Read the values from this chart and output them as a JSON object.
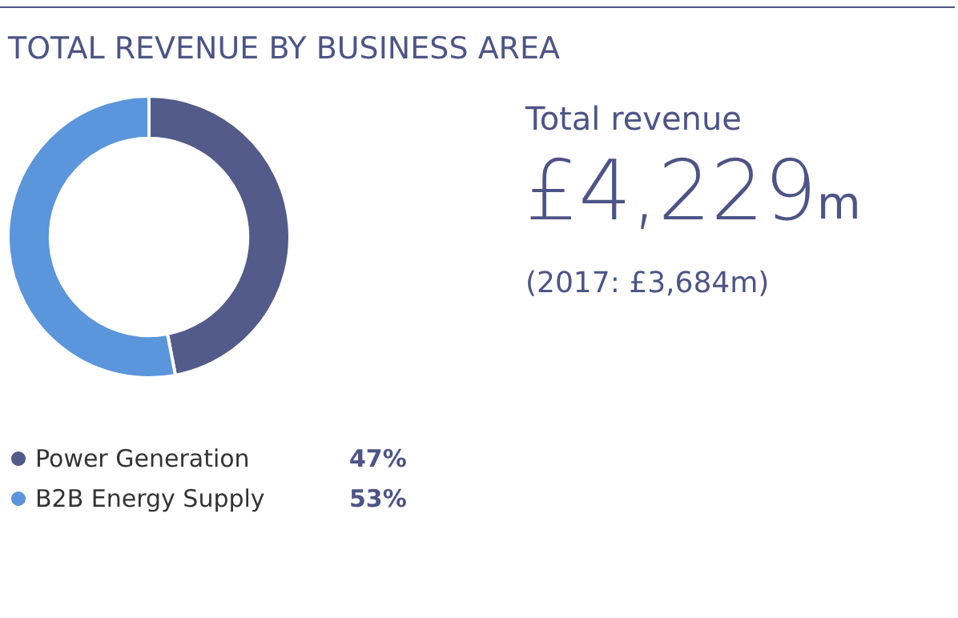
{
  "chart_data": {
    "type": "donut",
    "title": "TOTAL REVENUE BY BUSINESS AREA",
    "categories": [
      "Power Generation",
      "B2B Energy Supply"
    ],
    "values": [
      47,
      53
    ],
    "colors": [
      "#535b8a",
      "#5b95db"
    ],
    "value_labels": [
      "47%",
      "53%"
    ],
    "legend": "bottom left",
    "annotations": [
      "Total revenue",
      "£4,229m",
      "(2017: £3,684m)"
    ]
  }
}
